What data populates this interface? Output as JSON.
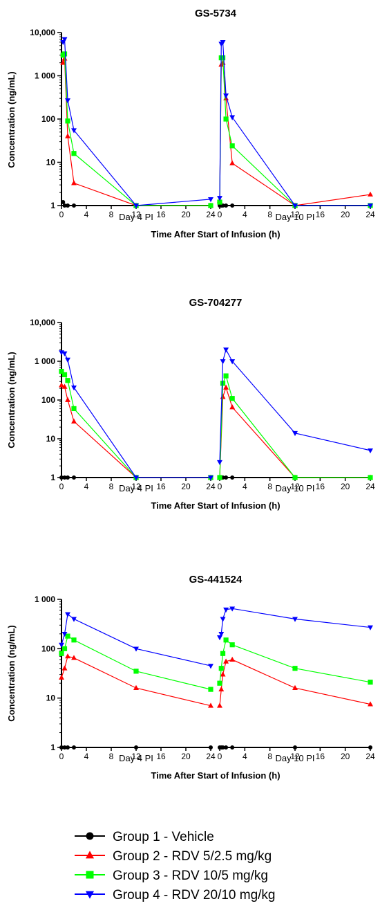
{
  "chart_data": [
    {
      "type": "line",
      "title": "GS-5734",
      "ylabel": "Concentration (ng/mL)",
      "xlabel": "Time After Start of Infusion (h)",
      "yscale": "log",
      "ylim": [
        1,
        10000
      ],
      "ytick_labels": [
        "1",
        "10",
        "100",
        "1 000",
        "10,000"
      ],
      "xlim": [
        0,
        24
      ],
      "xtick_labels": [
        "0",
        "4",
        "8",
        "12",
        "16",
        "20",
        "24"
      ],
      "panels": [
        {
          "label": "Day 4 PI",
          "series": [
            {
              "name": "Group 1 - Vehicle",
              "x": [
                0.25,
                0.5,
                1,
                2,
                12,
                24
              ],
              "y": [
                1.2,
                1,
                1,
                1,
                1,
                1
              ]
            },
            {
              "name": "Group 2 - RDV 5/2.5 mg/kg",
              "x": [
                0.25,
                0.5,
                1,
                2,
                12,
                24
              ],
              "y": [
                2000,
                2500,
                40,
                3.3,
                1,
                1
              ]
            },
            {
              "name": "Group 3 - RDV 10/5 mg/kg",
              "x": [
                0.25,
                0.5,
                1,
                2,
                12,
                24
              ],
              "y": [
                3000,
                3200,
                90,
                16,
                1,
                1
              ]
            },
            {
              "name": "Group 4 - RDV 20/10 mg/kg",
              "x": [
                0.25,
                0.5,
                1,
                2,
                12,
                24
              ],
              "y": [
                6000,
                7000,
                270,
                55,
                1,
                1.4
              ]
            }
          ]
        },
        {
          "label": "Day 10 PI",
          "series": [
            {
              "name": "Group 1 - Vehicle",
              "x": [
                0,
                0.25,
                0.5,
                1,
                2,
                12,
                24
              ],
              "y": [
                1,
                1,
                1,
                1,
                1,
                1,
                1
              ]
            },
            {
              "name": "Group 2 - RDV 5/2.5 mg/kg",
              "x": [
                0,
                0.25,
                0.5,
                1,
                2,
                12,
                24
              ],
              "y": [
                1.3,
                1800,
                2000,
                300,
                9.5,
                1,
                1.8
              ]
            },
            {
              "name": "Group 3 - RDV 10/5 mg/kg",
              "x": [
                0,
                0.25,
                0.5,
                1,
                2,
                12,
                24
              ],
              "y": [
                1.2,
                2600,
                2600,
                100,
                24,
                1,
                1
              ]
            },
            {
              "name": "Group 4 - RDV 20/10 mg/kg",
              "x": [
                0,
                0.25,
                0.5,
                1,
                2,
                12,
                24
              ],
              "y": [
                1.5,
                5500,
                6000,
                350,
                110,
                1,
                1
              ]
            }
          ]
        }
      ]
    },
    {
      "type": "line",
      "title": "GS-704277",
      "ylabel": "Concentration (ng/mL)",
      "xlabel": "Time After Start of Infusion (h)",
      "yscale": "log",
      "ylim": [
        1,
        10000
      ],
      "ytick_labels": [
        "1",
        "10",
        "100",
        "1 000",
        "10,000"
      ],
      "xlim": [
        0,
        24
      ],
      "xtick_labels": [
        "0",
        "4",
        "8",
        "12",
        "16",
        "20",
        "24"
      ],
      "panels": [
        {
          "label": "Day 4 PI",
          "series": [
            {
              "name": "Group 1 - Vehicle",
              "x": [
                0,
                0.5,
                1,
                2,
                12,
                24
              ],
              "y": [
                1,
                1,
                1,
                1,
                1,
                1
              ]
            },
            {
              "name": "Group 2 - RDV 5/2.5 mg/kg",
              "x": [
                0,
                0.5,
                1,
                2,
                12,
                24
              ],
              "y": [
                240,
                220,
                100,
                28,
                1,
                1
              ]
            },
            {
              "name": "Group 3 - RDV 10/5 mg/kg",
              "x": [
                0,
                0.5,
                1,
                2,
                12,
                24
              ],
              "y": [
                550,
                450,
                320,
                60,
                1,
                1
              ]
            },
            {
              "name": "Group 4 - RDV 20/10 mg/kg",
              "x": [
                0,
                0.5,
                1,
                2,
                12,
                24
              ],
              "y": [
                1700,
                1600,
                1100,
                210,
                1,
                1
              ]
            }
          ]
        },
        {
          "label": "Day 10 PI",
          "series": [
            {
              "name": "Group 1 - Vehicle",
              "x": [
                0,
                0.5,
                1,
                2,
                12,
                24
              ],
              "y": [
                1,
                1,
                1,
                1,
                1,
                1
              ]
            },
            {
              "name": "Group 2 - RDV 5/2.5 mg/kg",
              "x": [
                0,
                0.5,
                1,
                2,
                12,
                24
              ],
              "y": [
                1,
                120,
                210,
                65,
                1,
                1
              ]
            },
            {
              "name": "Group 3 - RDV 10/5 mg/kg",
              "x": [
                0,
                0.5,
                1,
                2,
                12,
                24
              ],
              "y": [
                1,
                270,
                420,
                110,
                1,
                1
              ]
            },
            {
              "name": "Group 4 - RDV 20/10 mg/kg",
              "x": [
                0,
                0.5,
                1,
                2,
                12,
                24
              ],
              "y": [
                2.5,
                1000,
                2000,
                1000,
                14,
                5
              ]
            }
          ]
        }
      ]
    },
    {
      "type": "line",
      "title": "GS-441524",
      "ylabel": "Concentration (ng/mL)",
      "xlabel": "Time After Start of Infusion (h)",
      "yscale": "log",
      "ylim": [
        1,
        1000
      ],
      "ytick_labels": [
        "1",
        "10",
        "100",
        "1 000"
      ],
      "xlim": [
        0,
        24
      ],
      "xtick_labels": [
        "0",
        "4",
        "8",
        "12",
        "16",
        "20",
        "24"
      ],
      "panels": [
        {
          "label": "Day 4 PI",
          "series": [
            {
              "name": "Group 1 - Vehicle",
              "x": [
                0,
                0.5,
                1,
                2,
                12,
                24
              ],
              "y": [
                1,
                1,
                1,
                1,
                1,
                1
              ]
            },
            {
              "name": "Group 2 - RDV 5/2.5 mg/kg",
              "x": [
                0,
                0.5,
                1,
                2,
                12,
                24
              ],
              "y": [
                26,
                40,
                70,
                65,
                16,
                7
              ]
            },
            {
              "name": "Group 3 - RDV 10/5 mg/kg",
              "x": [
                0,
                0.5,
                1,
                2,
                12,
                24
              ],
              "y": [
                80,
                100,
                180,
                150,
                35,
                15
              ]
            },
            {
              "name": "Group 4 - RDV 20/10 mg/kg",
              "x": [
                0,
                0.5,
                1,
                2,
                12,
                24
              ],
              "y": [
                120,
                200,
                500,
                400,
                100,
                45
              ]
            }
          ]
        },
        {
          "label": "Day 10 PI",
          "series": [
            {
              "name": "Group 1 - Vehicle",
              "x": [
                0,
                0.25,
                0.5,
                1,
                2,
                12,
                24
              ],
              "y": [
                1,
                1,
                1,
                1,
                1,
                1,
                1
              ]
            },
            {
              "name": "Group 2 - RDV 5/2.5 mg/kg",
              "x": [
                0,
                0.25,
                0.5,
                1,
                2,
                12,
                24
              ],
              "y": [
                7,
                15,
                30,
                55,
                60,
                16,
                7.5
              ]
            },
            {
              "name": "Group 3 - RDV 10/5 mg/kg",
              "x": [
                0,
                0.25,
                0.5,
                1,
                2,
                12,
                24
              ],
              "y": [
                20,
                40,
                80,
                150,
                120,
                40,
                21
              ]
            },
            {
              "name": "Group 4 - RDV 20/10 mg/kg",
              "x": [
                0,
                0.25,
                0.5,
                1,
                2,
                12,
                24
              ],
              "y": [
                170,
                200,
                400,
                620,
                650,
                400,
                270
              ]
            }
          ]
        }
      ]
    }
  ],
  "legend": {
    "entries": [
      {
        "name": "Group 1 - Vehicle",
        "color": "#000000",
        "marker": "circle"
      },
      {
        "name": "Group 2 - RDV 5/2.5 mg/kg",
        "color": "#ff0000",
        "marker": "triangle-up"
      },
      {
        "name": "Group 3 - RDV 10/5 mg/kg",
        "color": "#00ff00",
        "marker": "square"
      },
      {
        "name": "Group 4 - RDV 20/10 mg/kg",
        "color": "#0000ff",
        "marker": "triangle-down"
      }
    ],
    "placement": "bottom"
  },
  "series_colors": [
    "#000000",
    "#ff0000",
    "#00ff00",
    "#0000ff"
  ]
}
